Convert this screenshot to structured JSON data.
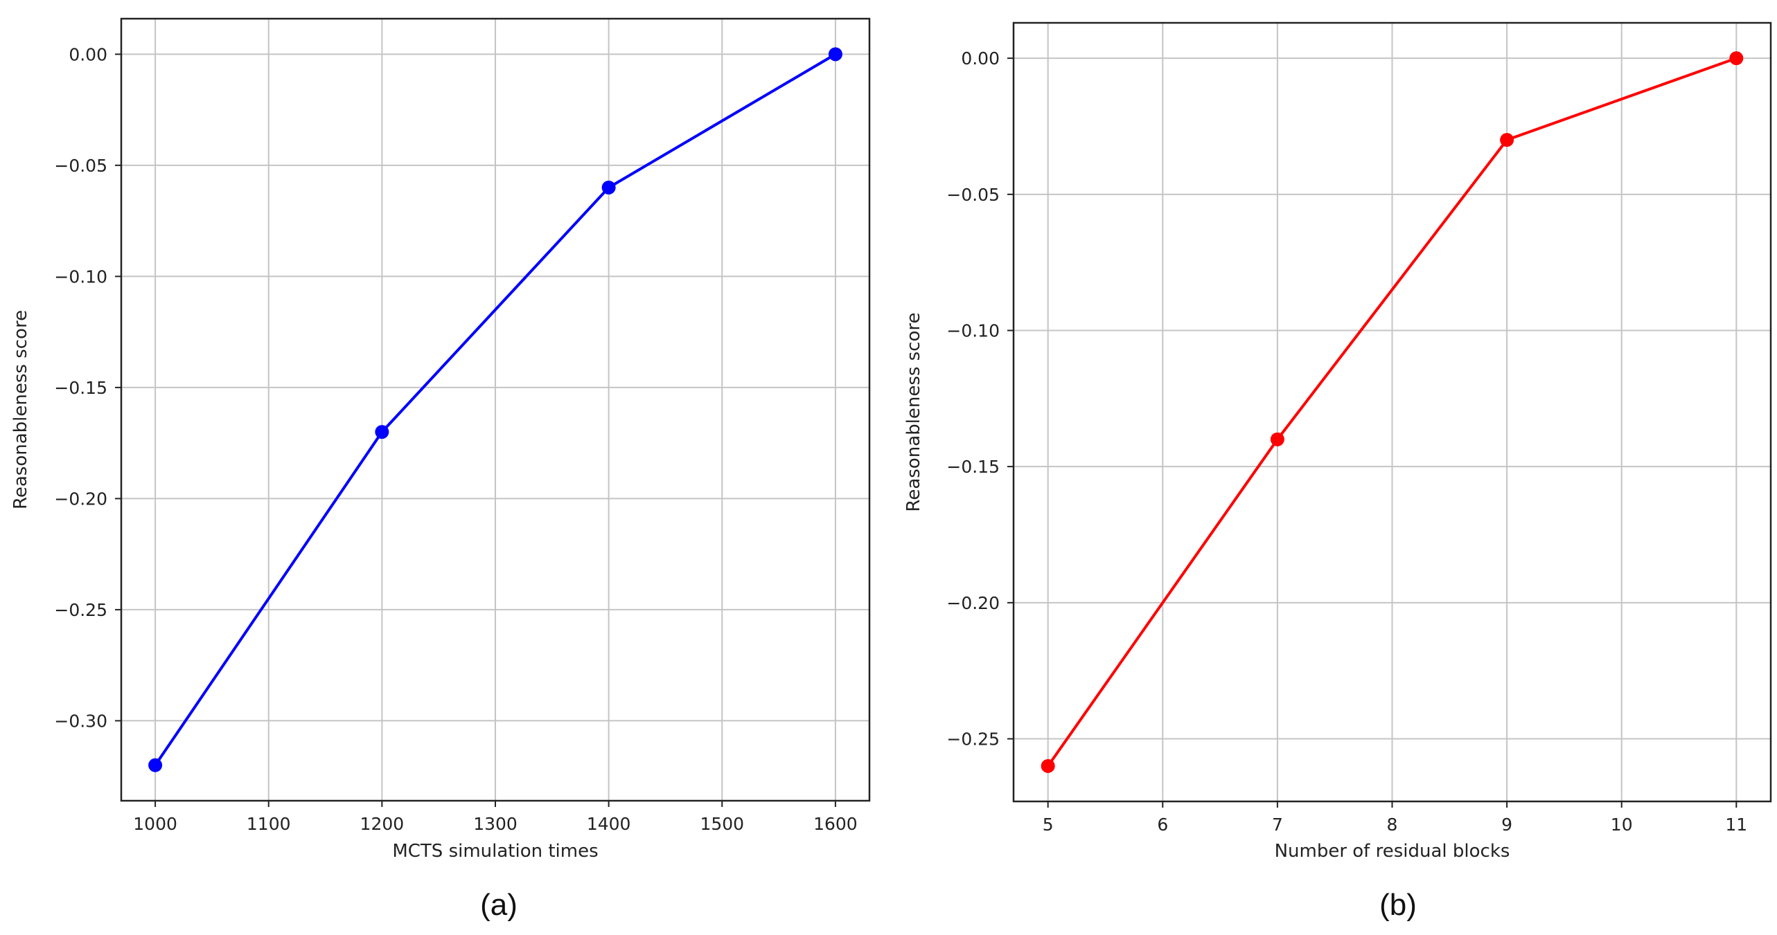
{
  "chart_data": [
    {
      "type": "line",
      "caption": "(a)",
      "xlabel": "MCTS simulation times",
      "ylabel": "Reasonableness score",
      "xlim": [
        970,
        1630
      ],
      "ylim": [
        -0.336,
        0.016
      ],
      "xticks": [
        1000,
        1100,
        1200,
        1300,
        1400,
        1500,
        1600
      ],
      "xtick_labels": [
        "1000",
        "1100",
        "1200",
        "1300",
        "1400",
        "1500",
        "1600"
      ],
      "yticks": [
        0.0,
        -0.05,
        -0.1,
        -0.15,
        -0.2,
        -0.25,
        -0.3
      ],
      "ytick_labels": [
        "0.00",
        "−0.05",
        "−0.10",
        "−0.15",
        "−0.20",
        "−0.25",
        "−0.30"
      ],
      "grid": true,
      "series": [
        {
          "color": "#0000ff",
          "x": [
            1000,
            1200,
            1400,
            1600
          ],
          "y": [
            -0.32,
            -0.17,
            -0.06,
            0.0
          ]
        }
      ]
    },
    {
      "type": "line",
      "caption": "(b)",
      "xlabel": "Number of residual blocks",
      "ylabel": "Reasonableness score",
      "xlim": [
        4.7,
        11.3
      ],
      "ylim": [
        -0.273,
        0.013
      ],
      "xticks": [
        5,
        6,
        7,
        8,
        9,
        10,
        11
      ],
      "xtick_labels": [
        "5",
        "6",
        "7",
        "8",
        "9",
        "10",
        "11"
      ],
      "yticks": [
        0.0,
        -0.05,
        -0.1,
        -0.15,
        -0.2,
        -0.25
      ],
      "ytick_labels": [
        "0.00",
        "−0.05",
        "−0.10",
        "−0.15",
        "−0.20",
        "−0.25"
      ],
      "grid": true,
      "series": [
        {
          "color": "#ff0000",
          "x": [
            5,
            7,
            9,
            11
          ],
          "y": [
            -0.26,
            -0.14,
            -0.03,
            0.0
          ]
        }
      ]
    }
  ]
}
